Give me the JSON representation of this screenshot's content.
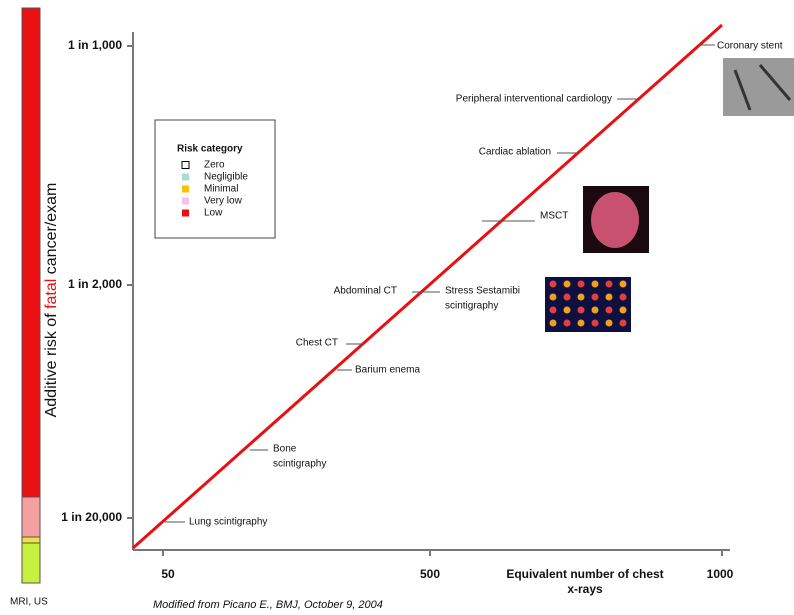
{
  "y_axis": {
    "label_parts": [
      "Additive risk of ",
      "fatal",
      " cancer/exam"
    ],
    "ticks": [
      "1 in 1,000",
      "1 in 2,000",
      "1 in 20,000"
    ]
  },
  "x_axis": {
    "ticks": [
      "50",
      "500",
      "1000"
    ],
    "label_lines": [
      "Equivalent number of chest",
      "x-rays"
    ]
  },
  "legend": {
    "title": "Risk category",
    "items": [
      {
        "name": "Zero",
        "color": "#ffffff"
      },
      {
        "name": "Negligible",
        "color": "#a8dcd8"
      },
      {
        "name": "Minimal",
        "color": "#f5c400"
      },
      {
        "name": "Very low",
        "color": "#f6c0e8"
      },
      {
        "name": "Low",
        "color": "#e81010"
      }
    ]
  },
  "annotations": [
    [
      "Coronary stent"
    ],
    [
      "Peripheral interventional cardiology"
    ],
    [
      "Cardiac ablation"
    ],
    [
      "MSCT"
    ],
    [
      "Abdominal CT"
    ],
    [
      "Stress Sestamibi",
      "scintigraphy"
    ],
    [
      "Chest CT"
    ],
    [
      "Barium enema"
    ],
    [
      "Bone",
      "scintigraphy"
    ],
    [
      "Lung scintigraphy"
    ]
  ],
  "bar_label": "MRI, US",
  "source": "Modified  from Picano E., BMJ, October 9, 2004"
}
